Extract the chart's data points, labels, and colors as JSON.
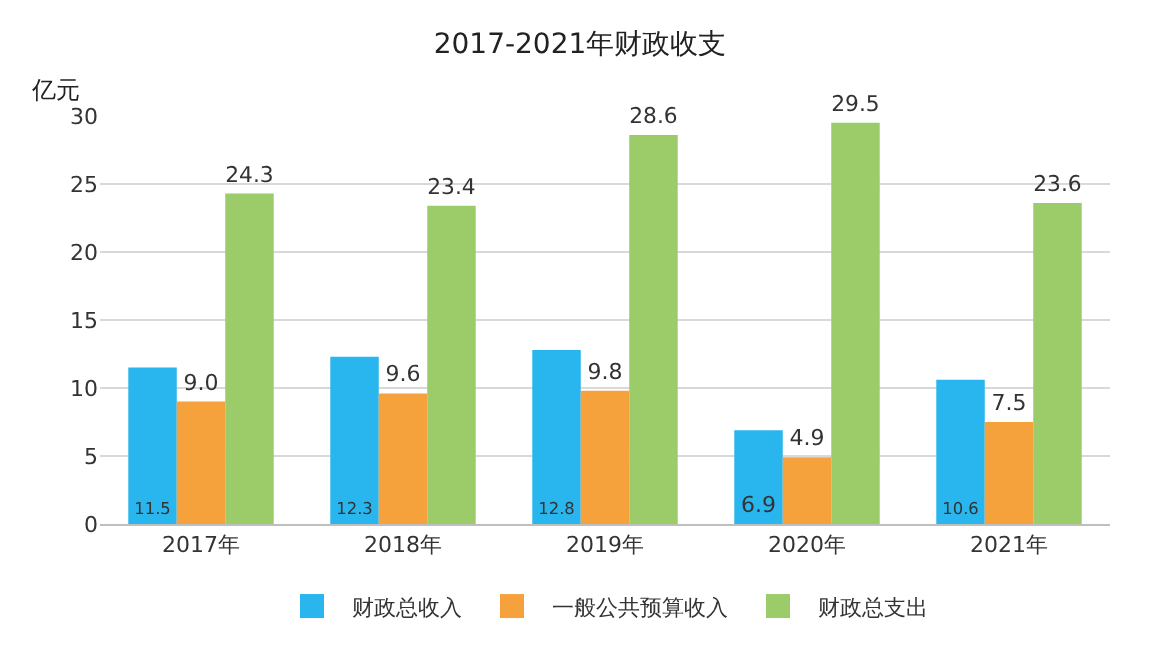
{
  "chart_data": {
    "type": "bar",
    "title": "2017-2021年财政收支",
    "ylabel": "亿元",
    "categories": [
      "2017年",
      "2018年",
      "2019年",
      "2020年",
      "2021年"
    ],
    "series": [
      {
        "name": "财政总收入",
        "color": "#29b6ee",
        "values": [
          11.5,
          12.3,
          12.8,
          6.9,
          10.6
        ],
        "value_labels": [
          "11.5",
          "12.3",
          "12.8",
          "6.9",
          "10.6"
        ]
      },
      {
        "name": "一般公共预算收入",
        "color": "#f5a23c",
        "values": [
          9.0,
          9.6,
          9.8,
          4.9,
          7.5
        ],
        "value_labels": [
          "9.0",
          "9.6",
          "9.8",
          "4.9",
          "7.5"
        ]
      },
      {
        "name": "财政总支出",
        "color": "#9ccb6a",
        "values": [
          24.3,
          23.4,
          28.6,
          29.5,
          23.6
        ],
        "value_labels": [
          "24.3",
          "23.4",
          "28.6",
          "29.5",
          "23.6"
        ]
      }
    ],
    "ylim": [
      0,
      30
    ],
    "yticks": [
      0,
      5,
      10,
      15,
      20,
      25,
      30
    ],
    "grid": "y",
    "legend": "bottom"
  }
}
